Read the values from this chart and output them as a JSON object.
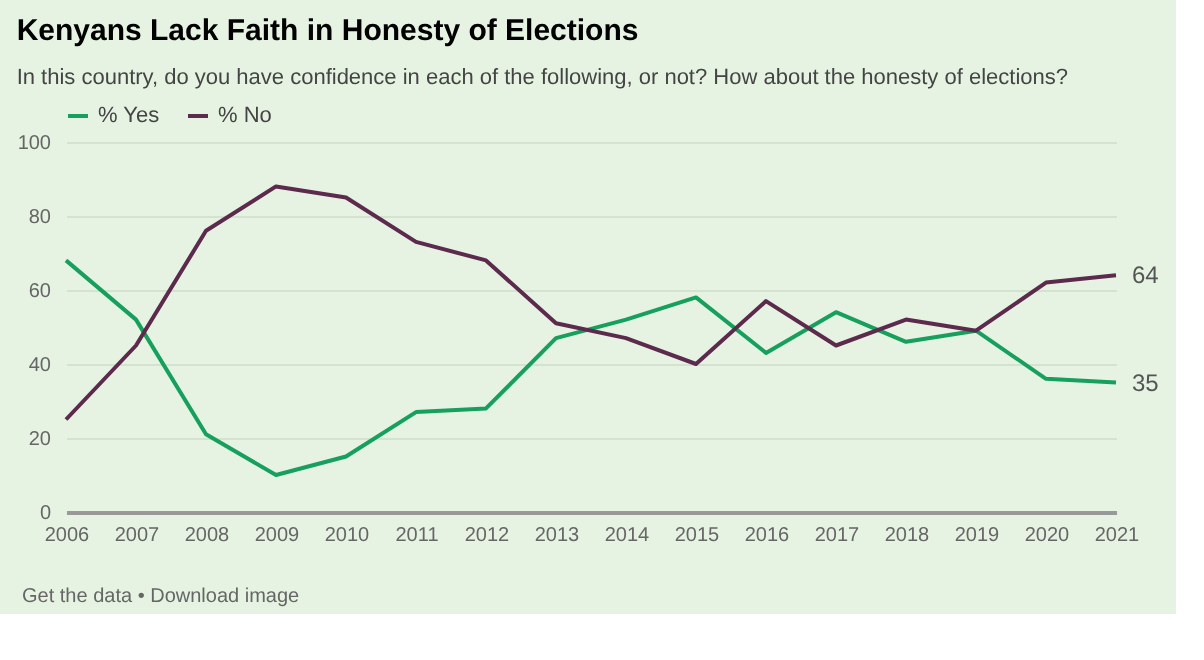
{
  "chart_data": {
    "type": "line",
    "title": "Kenyans Lack Faith in Honesty of Elections",
    "subtitle": "In this country, do you have confidence in each of the following, or not? How about the honesty of elections?",
    "categories": [
      "2006",
      "2007",
      "2008",
      "2009",
      "2010",
      "2011",
      "2012",
      "2013",
      "2014",
      "2015",
      "2016",
      "2017",
      "2018",
      "2019",
      "2020",
      "2021"
    ],
    "series": [
      {
        "name": "% Yes",
        "color": "#17a05d",
        "values": [
          68,
          52,
          21,
          10,
          15,
          27,
          28,
          47,
          52,
          58,
          43,
          54,
          46,
          49,
          36,
          35
        ],
        "value_labels": [
          null,
          null,
          null,
          null,
          null,
          null,
          null,
          null,
          null,
          null,
          null,
          null,
          null,
          null,
          null,
          "35"
        ]
      },
      {
        "name": "% No",
        "color": "#5c2a4d",
        "values": [
          25,
          45,
          76,
          88,
          85,
          73,
          68,
          51,
          47,
          40,
          57,
          45,
          52,
          49,
          62,
          64
        ],
        "value_labels": [
          null,
          null,
          null,
          null,
          null,
          null,
          null,
          null,
          null,
          null,
          null,
          null,
          null,
          null,
          null,
          "64"
        ]
      }
    ],
    "ylim": [
      0,
      100
    ],
    "yticks": [
      0,
      20,
      40,
      60,
      80,
      100
    ],
    "grid": "y",
    "legend": "top left",
    "marker": "none",
    "line_style": "solid",
    "annotations": [
      "Get the data • Download image"
    ]
  }
}
